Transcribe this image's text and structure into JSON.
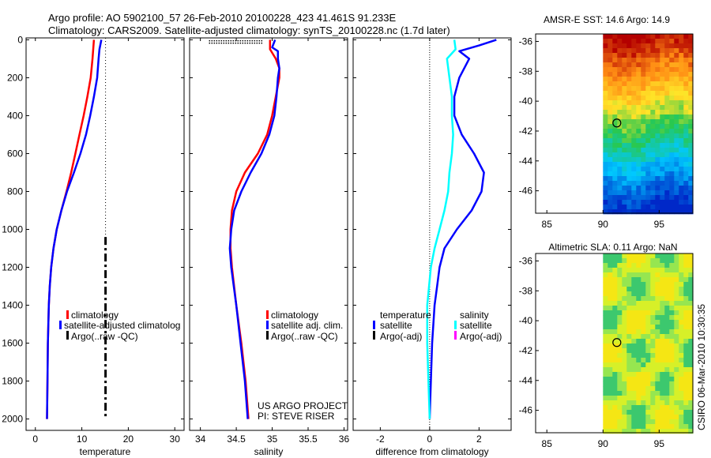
{
  "header": {
    "line1": "Argo profile: AO 5902100_57 26-Feb-2010 20100228_423 41.461S 91.233E",
    "line2": "Climatology: CARS2009. Satellite-adjusted climatology: synTS_20100228.nc (1.7d later)"
  },
  "side_label": "CSIRO 06-Mar-2010 10:30:35",
  "credit": {
    "line1": "US ARGO PROJECT",
    "line2": "PI: STEVE RISER"
  },
  "colors": {
    "climatology": "#ff0000",
    "satellite": "#0000ff",
    "argo": "#000000",
    "salinity_sat": "#00ffff",
    "salinity_argo": "#ff00ff"
  },
  "chart_data": [
    {
      "type": "line",
      "xlabel": "temperature",
      "ylim": [
        2060,
        -10
      ],
      "xlim": [
        -2,
        32
      ],
      "xticks": [
        "0",
        "10",
        "20",
        "30"
      ],
      "yticks": [
        "0",
        "200",
        "400",
        "600",
        "800",
        "1000",
        "1200",
        "1400",
        "1600",
        "1800",
        "2000"
      ],
      "legend": [
        "climatology",
        "satellite-adjusted climatolog",
        "Argo(..raw -QC)"
      ],
      "series": [
        {
          "name": "climatology",
          "depth": [
            0,
            100,
            200,
            300,
            400,
            500,
            600,
            700,
            800,
            900,
            1000,
            1100,
            1200,
            1300,
            1400,
            1500,
            1600,
            1800,
            2000
          ],
          "values": [
            12.6,
            12.3,
            11.9,
            11.2,
            10.4,
            9.5,
            8.6,
            7.7,
            6.7,
            5.6,
            4.6,
            3.9,
            3.4,
            3.1,
            2.9,
            2.8,
            2.7,
            2.6,
            2.5
          ]
        },
        {
          "name": "satellite-adjusted climatolog",
          "depth": [
            0,
            50,
            100,
            200,
            300,
            400,
            500,
            600,
            700,
            800,
            900,
            1000,
            1100,
            1200,
            1300,
            1400,
            1600,
            1800,
            2000
          ],
          "values": [
            14.2,
            13.8,
            13.6,
            13.3,
            12.6,
            11.8,
            10.9,
            9.7,
            8.3,
            6.8,
            5.6,
            4.6,
            3.9,
            3.4,
            3.1,
            2.9,
            2.7,
            2.6,
            2.5
          ]
        },
        {
          "name": "Argo(..raw -QC)",
          "depth": [
            1040,
            2000
          ],
          "values": [
            15.1,
            15.1
          ],
          "style": "dashdot"
        }
      ]
    },
    {
      "type": "line",
      "xlabel": "salinity",
      "ylim": [
        2060,
        -10
      ],
      "xlim": [
        33.85,
        36.05
      ],
      "xticks": [
        "34",
        "34.5",
        "35",
        "35.5",
        "36"
      ],
      "legend": [
        "climatology",
        "satellite adj. clim.",
        "Argo(..raw -QC)"
      ],
      "series": [
        {
          "name": "climatology",
          "depth": [
            0,
            50,
            100,
            150,
            200,
            300,
            400,
            500,
            600,
            700,
            800,
            900,
            1000,
            1100,
            1200,
            1400,
            1600,
            1800,
            2000
          ],
          "values": [
            34.97,
            34.97,
            35.05,
            35.1,
            35.1,
            35.05,
            35.0,
            34.93,
            34.8,
            34.62,
            34.5,
            34.44,
            34.42,
            34.42,
            34.44,
            34.5,
            34.57,
            34.63,
            34.67
          ]
        },
        {
          "name": "satellite adj. clim.",
          "depth": [
            0,
            40,
            60,
            100,
            150,
            200,
            300,
            400,
            500,
            600,
            700,
            800,
            900,
            1000,
            1100,
            1200,
            1400,
            1600,
            1800,
            2000
          ],
          "values": [
            35.04,
            35.0,
            35.08,
            35.08,
            35.1,
            35.08,
            35.06,
            35.03,
            34.96,
            34.85,
            34.7,
            34.57,
            34.47,
            34.43,
            34.41,
            34.43,
            34.5,
            34.56,
            34.62,
            34.66
          ]
        },
        {
          "name": "Argo(..raw -QC)",
          "depth": [
            5,
            20
          ],
          "values": [
            34.12,
            34.12
          ],
          "style": "dotted-band",
          "x_end": 34.87
        }
      ]
    },
    {
      "type": "line",
      "xlabel": "difference from climatology",
      "ylim": [
        2060,
        -10
      ],
      "xlim": [
        -3.1,
        3.3
      ],
      "xticks": [
        "-2",
        "0",
        "2"
      ],
      "legend_title_left": "temperature",
      "legend_title_right": "salinity",
      "legend_left": [
        "satellite",
        "Argo(-adj)"
      ],
      "legend_right": [
        "satellite",
        "Argo(-adj)"
      ],
      "zero_line": 0,
      "series": [
        {
          "name": "temperature satellite",
          "depth": [
            0,
            30,
            60,
            100,
            200,
            300,
            400,
            500,
            600,
            700,
            800,
            900,
            1000,
            1100,
            1200,
            1300,
            1400,
            1600,
            1800,
            2000
          ],
          "values": [
            2.7,
            2.0,
            1.2,
            1.6,
            1.2,
            1.0,
            1.0,
            1.3,
            1.8,
            2.2,
            2.1,
            1.7,
            1.1,
            0.6,
            0.4,
            0.3,
            0.2,
            0.1,
            0.05,
            0.0
          ]
        },
        {
          "name": "salinity satellite",
          "depth": [
            0,
            50,
            100,
            200,
            300,
            400,
            500,
            600,
            700,
            800,
            900,
            1000,
            1100,
            1200,
            1400,
            1600,
            1800,
            2000
          ],
          "values": [
            1.0,
            1.05,
            0.7,
            0.8,
            0.9,
            0.9,
            0.95,
            0.9,
            0.8,
            0.75,
            0.6,
            0.4,
            0.2,
            0.05,
            -0.1,
            -0.1,
            -0.05,
            0.0
          ]
        }
      ]
    }
  ],
  "maps": [
    {
      "title": "AMSR-E SST: 14.6 Argo: 14.9",
      "xticks": [
        "85",
        "90",
        "95"
      ],
      "yticks": [
        "-36",
        "-38",
        "-40",
        "-42",
        "-44",
        "-46"
      ]
    },
    {
      "title": "Altimetric SLA: 0.11 Argo: NaN",
      "xticks": [
        "85",
        "90",
        "95"
      ],
      "yticks": [
        "-36",
        "-38",
        "-40",
        "-42",
        "-44",
        "-46"
      ]
    }
  ]
}
